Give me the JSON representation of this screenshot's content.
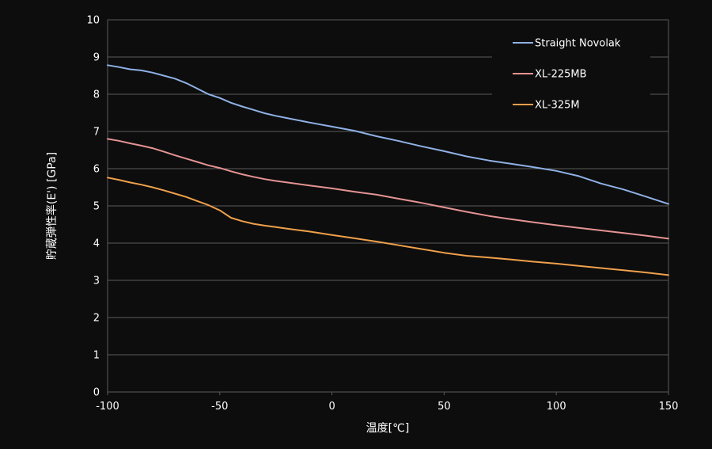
{
  "chart_data": {
    "type": "line",
    "title": "",
    "xlabel": "温度[℃]",
    "ylabel": "貯蔵弾性率(E') [GPa]",
    "xlim": [
      -100,
      150
    ],
    "ylim": [
      0,
      10
    ],
    "x_ticks": [
      "-100",
      "-50",
      "0",
      "50",
      "100",
      "150"
    ],
    "y_ticks": [
      "0",
      "1",
      "2",
      "3",
      "4",
      "5",
      "6",
      "7",
      "8",
      "9",
      "10"
    ],
    "grid": true,
    "legend_position": "top-right",
    "series": [
      {
        "name": "Straight Novolak",
        "color": "#8fb1e6",
        "x": [
          -100,
          -95,
          -90,
          -85,
          -80,
          -75,
          -70,
          -65,
          -60,
          -55,
          -50,
          -45,
          -40,
          -35,
          -30,
          -25,
          -20,
          -10,
          0,
          10,
          20,
          30,
          40,
          50,
          60,
          70,
          80,
          90,
          100,
          110,
          120,
          130,
          140,
          150
        ],
        "y": [
          8.78,
          8.73,
          8.67,
          8.64,
          8.58,
          8.5,
          8.42,
          8.3,
          8.15,
          8.0,
          7.9,
          7.77,
          7.67,
          7.58,
          7.49,
          7.42,
          7.36,
          7.24,
          7.13,
          7.02,
          6.87,
          6.74,
          6.6,
          6.47,
          6.33,
          6.22,
          6.13,
          6.04,
          5.94,
          5.8,
          5.6,
          5.44,
          5.25,
          5.05
        ]
      },
      {
        "name": "XL-225MB",
        "color": "#e59393",
        "x": [
          -100,
          -95,
          -90,
          -85,
          -80,
          -75,
          -70,
          -65,
          -60,
          -55,
          -50,
          -45,
          -40,
          -35,
          -30,
          -25,
          -20,
          -10,
          0,
          10,
          20,
          30,
          40,
          50,
          60,
          70,
          80,
          90,
          100,
          110,
          120,
          130,
          140,
          150
        ],
        "y": [
          6.8,
          6.75,
          6.68,
          6.62,
          6.55,
          6.46,
          6.36,
          6.27,
          6.18,
          6.09,
          6.02,
          5.93,
          5.85,
          5.78,
          5.72,
          5.67,
          5.63,
          5.55,
          5.47,
          5.38,
          5.3,
          5.19,
          5.08,
          4.96,
          4.84,
          4.73,
          4.64,
          4.56,
          4.48,
          4.41,
          4.34,
          4.27,
          4.2,
          4.12
        ]
      },
      {
        "name": "XL-325M",
        "color": "#f0a04b",
        "x": [
          -100,
          -95,
          -90,
          -85,
          -80,
          -75,
          -70,
          -65,
          -60,
          -55,
          -50,
          -45,
          -40,
          -35,
          -30,
          -25,
          -20,
          -10,
          0,
          10,
          20,
          30,
          40,
          50,
          60,
          70,
          80,
          90,
          100,
          110,
          120,
          130,
          140,
          150
        ],
        "y": [
          5.76,
          5.7,
          5.63,
          5.57,
          5.5,
          5.42,
          5.33,
          5.24,
          5.13,
          5.02,
          4.88,
          4.68,
          4.59,
          4.52,
          4.47,
          4.43,
          4.39,
          4.31,
          4.22,
          4.13,
          4.04,
          3.94,
          3.84,
          3.74,
          3.66,
          3.61,
          3.56,
          3.5,
          3.45,
          3.39,
          3.33,
          3.27,
          3.21,
          3.14
        ]
      }
    ]
  }
}
